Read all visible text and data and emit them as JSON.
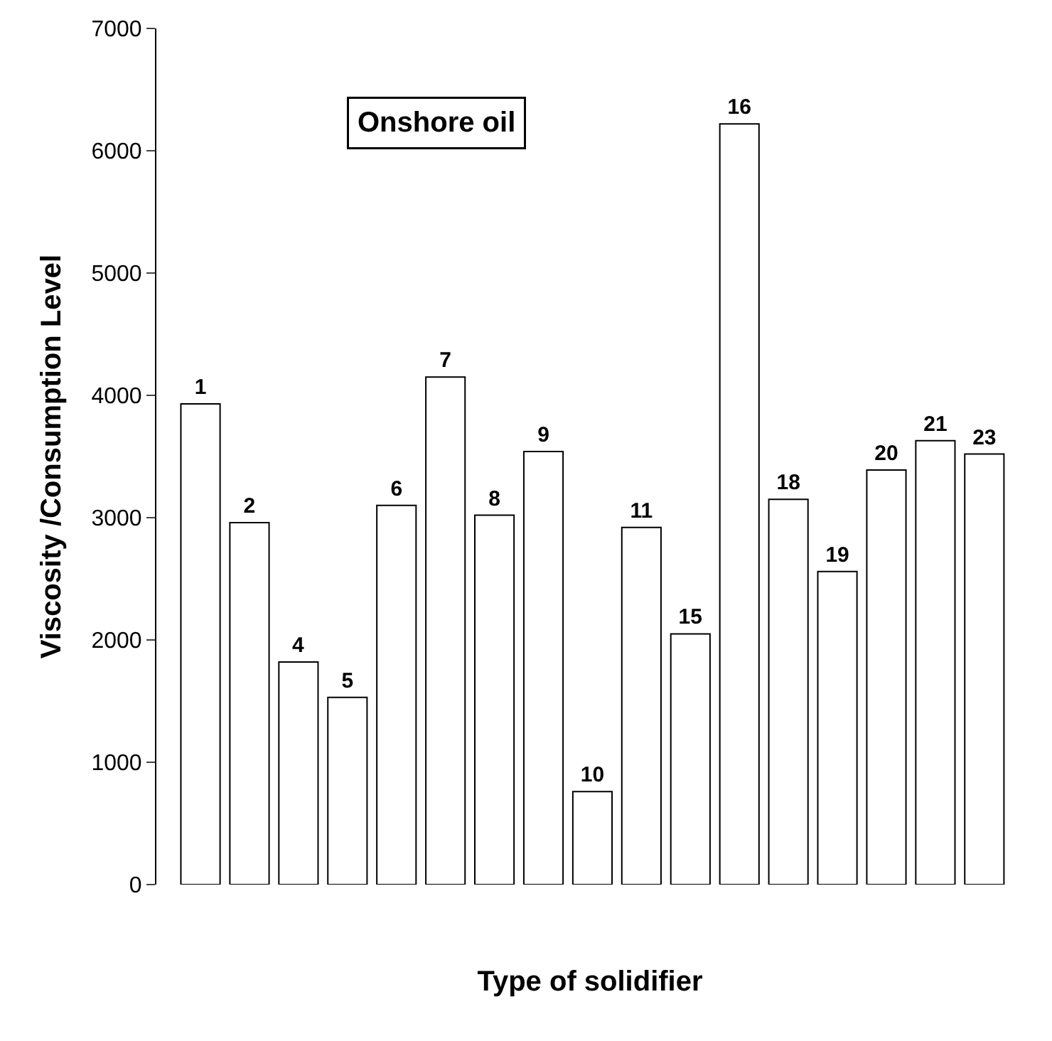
{
  "chart_data": {
    "type": "bar",
    "xlabel": "Type of solidifier",
    "ylabel": "Viscosity /Consumption Level",
    "categories": [
      "1",
      "2",
      "4",
      "5",
      "6",
      "7",
      "8",
      "9",
      "10",
      "11",
      "15",
      "16",
      "18",
      "19",
      "20",
      "21",
      "23"
    ],
    "values": [
      3930,
      2960,
      1820,
      1530,
      3100,
      4150,
      3020,
      3540,
      760,
      2920,
      2050,
      6220,
      3150,
      2560,
      3390,
      3630,
      3520
    ],
    "color": "#ffffff",
    "ylim": [
      0,
      7000
    ],
    "yticks": [
      0,
      1000,
      2000,
      3000,
      4000,
      5000,
      6000,
      7000
    ],
    "tick_labels": "y",
    "annotations": [
      "Onshore oil"
    ]
  }
}
